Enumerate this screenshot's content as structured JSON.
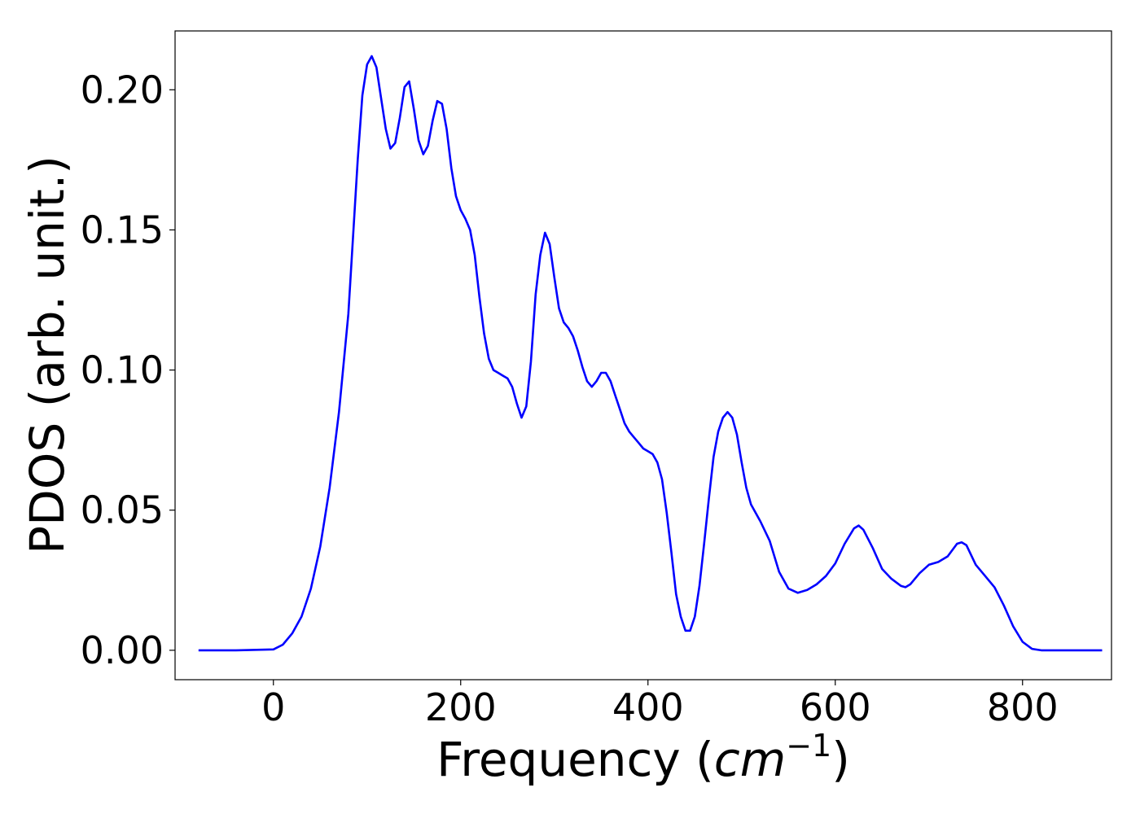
{
  "chart_data": {
    "type": "line",
    "title": "",
    "xlabel": "Frequency (",
    "xlabel_math": "cm",
    "xlabel_sup": "−1",
    "xlabel_close": ")",
    "ylabel": "PDOS (arb. unit.)",
    "xlim": [
      -105,
      895
    ],
    "ylim": [
      -0.0105,
      0.221
    ],
    "xticks": [
      0,
      200,
      400,
      600,
      800
    ],
    "xtick_labels": [
      "0",
      "200",
      "400",
      "600",
      "800"
    ],
    "yticks": [
      0.0,
      0.05,
      0.1,
      0.15,
      0.2
    ],
    "ytick_labels": [
      "0.00",
      "0.05",
      "0.10",
      "0.15",
      "0.20"
    ],
    "grid": false,
    "legend": "none",
    "series": [
      {
        "color": "#0000ff",
        "x": [
          -80,
          -40,
          0,
          10,
          20,
          30,
          40,
          50,
          60,
          70,
          80,
          90,
          95,
          100,
          105,
          110,
          115,
          120,
          125,
          130,
          135,
          140,
          145,
          150,
          155,
          160,
          165,
          170,
          175,
          180,
          185,
          190,
          195,
          200,
          205,
          210,
          215,
          220,
          225,
          230,
          235,
          240,
          245,
          250,
          255,
          260,
          265,
          270,
          275,
          280,
          285,
          290,
          295,
          300,
          305,
          310,
          315,
          320,
          325,
          330,
          335,
          340,
          345,
          350,
          355,
          360,
          365,
          370,
          375,
          380,
          385,
          390,
          395,
          400,
          405,
          410,
          415,
          420,
          425,
          430,
          435,
          440,
          445,
          450,
          455,
          460,
          465,
          470,
          475,
          480,
          485,
          490,
          495,
          500,
          505,
          510,
          520,
          530,
          540,
          550,
          560,
          570,
          580,
          590,
          600,
          610,
          620,
          625,
          630,
          640,
          650,
          660,
          670,
          675,
          680,
          690,
          700,
          710,
          720,
          730,
          735,
          740,
          750,
          760,
          770,
          780,
          790,
          800,
          810,
          820,
          850,
          885
        ],
        "y": [
          0.0,
          0.0,
          0.0003,
          0.002,
          0.006,
          0.012,
          0.022,
          0.037,
          0.058,
          0.085,
          0.12,
          0.175,
          0.198,
          0.209,
          0.212,
          0.208,
          0.197,
          0.186,
          0.179,
          0.181,
          0.19,
          0.201,
          0.203,
          0.193,
          0.182,
          0.177,
          0.18,
          0.189,
          0.196,
          0.195,
          0.186,
          0.172,
          0.162,
          0.157,
          0.154,
          0.15,
          0.141,
          0.126,
          0.113,
          0.104,
          0.1,
          0.099,
          0.098,
          0.097,
          0.094,
          0.088,
          0.083,
          0.087,
          0.103,
          0.127,
          0.141,
          0.149,
          0.145,
          0.133,
          0.122,
          0.117,
          0.115,
          0.112,
          0.107,
          0.101,
          0.096,
          0.094,
          0.096,
          0.099,
          0.099,
          0.096,
          0.091,
          0.086,
          0.081,
          0.078,
          0.076,
          0.074,
          0.072,
          0.071,
          0.07,
          0.067,
          0.061,
          0.049,
          0.035,
          0.02,
          0.012,
          0.007,
          0.007,
          0.012,
          0.023,
          0.038,
          0.054,
          0.069,
          0.078,
          0.083,
          0.085,
          0.083,
          0.077,
          0.067,
          0.058,
          0.052,
          0.046,
          0.039,
          0.028,
          0.022,
          0.0205,
          0.0215,
          0.0235,
          0.0265,
          0.031,
          0.038,
          0.0435,
          0.0445,
          0.043,
          0.0365,
          0.029,
          0.0255,
          0.023,
          0.0225,
          0.0235,
          0.0275,
          0.0305,
          0.0315,
          0.0335,
          0.038,
          0.0385,
          0.0375,
          0.0305,
          0.0265,
          0.0225,
          0.016,
          0.0085,
          0.003,
          0.0005,
          0.0,
          0.0,
          0.0
        ]
      }
    ]
  }
}
